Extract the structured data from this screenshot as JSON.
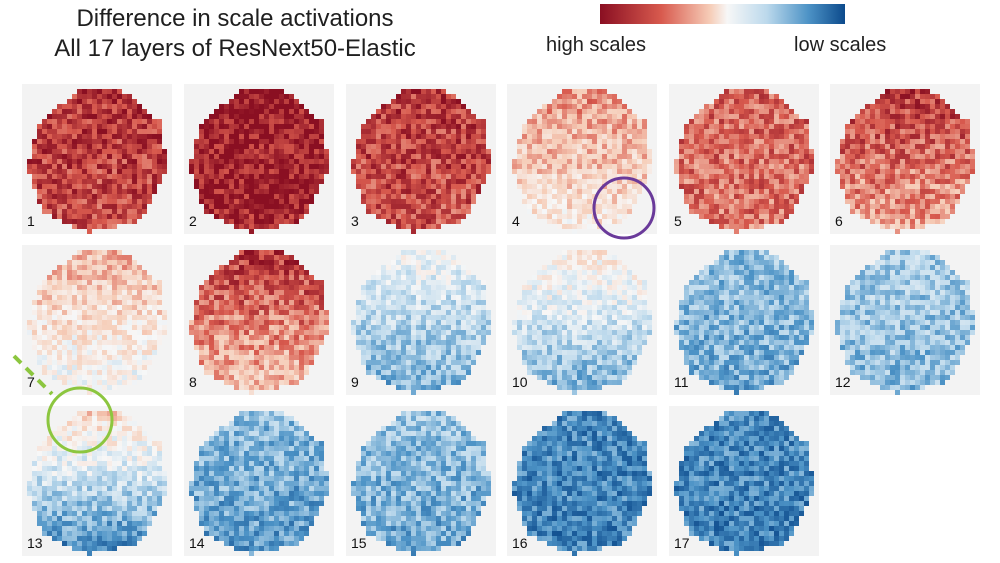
{
  "title_line1": "Difference in scale activations",
  "title_line2": "All 17 layers of ResNext50-Elastic",
  "colorbar": {
    "label_left": "high scales",
    "label_right": "low scales",
    "color_high": "#8a0f22",
    "color_mid": "#f7f7f7",
    "color_low": "#0c4a8c"
  },
  "layers": [
    {
      "label": "1",
      "level": 0.78,
      "trend": 0.1
    },
    {
      "label": "2",
      "level": 0.92,
      "trend": 0.05
    },
    {
      "label": "3",
      "level": 0.76,
      "trend": 0.1
    },
    {
      "label": "4",
      "level": 0.32,
      "trend": 0.35
    },
    {
      "label": "5",
      "level": 0.62,
      "trend": 0.05
    },
    {
      "label": "6",
      "level": 0.62,
      "trend": 0.35
    },
    {
      "label": "7",
      "level": 0.18,
      "trend": 0.4
    },
    {
      "label": "8",
      "level": 0.58,
      "trend": 0.45
    },
    {
      "label": "9",
      "level": -0.3,
      "trend": 0.45
    },
    {
      "label": "10",
      "level": -0.2,
      "trend": 0.6
    },
    {
      "label": "11",
      "level": -0.5,
      "trend": 0.1
    },
    {
      "label": "12",
      "level": -0.42,
      "trend": 0.1
    },
    {
      "label": "13",
      "level": -0.25,
      "trend": 0.9
    },
    {
      "label": "14",
      "level": -0.55,
      "trend": 0.15
    },
    {
      "label": "15",
      "level": -0.5,
      "trend": 0.15
    },
    {
      "label": "16",
      "level": -0.72,
      "trend": 0.05
    },
    {
      "label": "17",
      "level": -0.72,
      "trend": 0.05
    }
  ],
  "highlights": [
    {
      "layer": "4",
      "color": "#6a3a9a"
    },
    {
      "layer": "13",
      "color": "#8cc63f"
    }
  ]
}
